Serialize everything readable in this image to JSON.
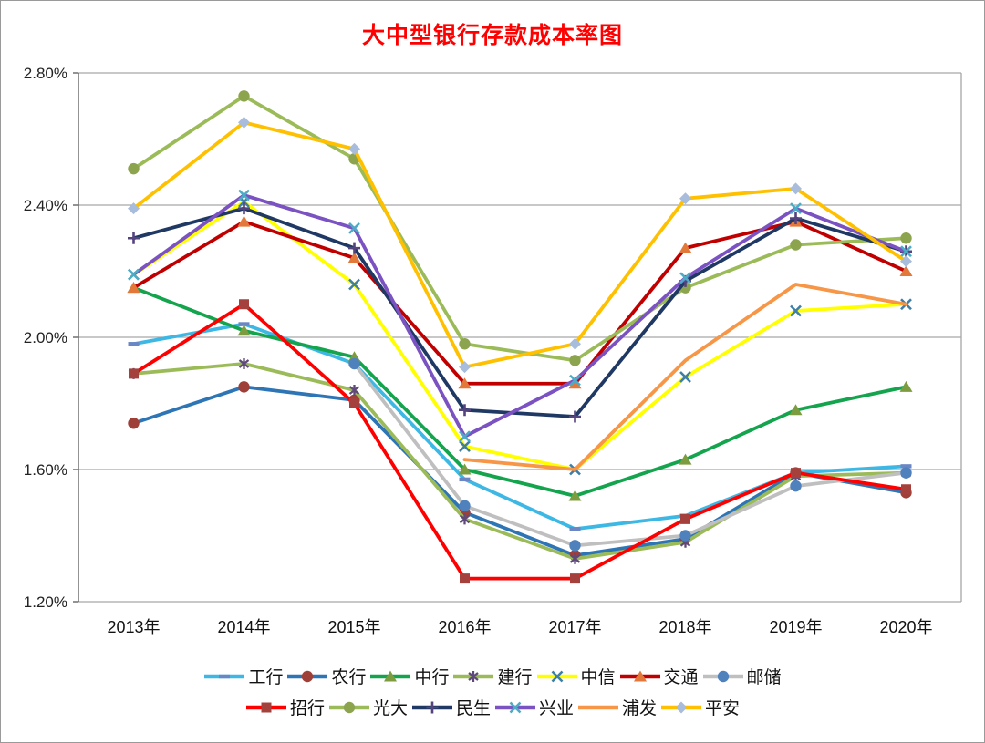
{
  "title": {
    "text": "大中型银行存款成本率图",
    "color": "#FF0000"
  },
  "chart_data": {
    "type": "line",
    "title": "大中型银行存款成本率图",
    "categories": [
      "2013年",
      "2014年",
      "2015年",
      "2016年",
      "2017年",
      "2018年",
      "2019年",
      "2020年"
    ],
    "ylim": [
      1.2,
      2.8
    ],
    "ytick_step": 0.4,
    "ytick_labels": [
      "1.20%",
      "1.60%",
      "2.00%",
      "2.40%",
      "2.80%"
    ],
    "grid": true,
    "legend_position": "bottom",
    "axis_unit": "percent",
    "series": [
      {
        "name": "工行",
        "color": "#3DB7E4",
        "marker": "dash",
        "marker_color": "#6B86C5",
        "values": [
          1.98,
          2.04,
          1.92,
          1.57,
          1.42,
          1.46,
          1.59,
          1.61
        ]
      },
      {
        "name": "农行",
        "color": "#2E75B6",
        "marker": "circle",
        "marker_color": "#9E4038",
        "values": [
          1.74,
          1.85,
          1.81,
          1.47,
          1.34,
          1.39,
          1.59,
          1.53
        ]
      },
      {
        "name": "中行",
        "color": "#14A44D",
        "marker": "triangle",
        "marker_color": "#7D9C3F",
        "values": [
          2.15,
          2.02,
          1.94,
          1.6,
          1.52,
          1.63,
          1.78,
          1.85
        ]
      },
      {
        "name": "建行",
        "color": "#9BBB59",
        "marker": "asterisk",
        "marker_color": "#5F497A",
        "values": [
          1.89,
          1.92,
          1.84,
          1.45,
          1.33,
          1.38,
          1.58,
          1.59
        ]
      },
      {
        "name": "中信",
        "color": "#FFFF00",
        "marker": "x",
        "marker_color": "#3F7FA6",
        "values": [
          2.19,
          2.41,
          2.16,
          1.67,
          1.6,
          1.88,
          2.08,
          2.1
        ]
      },
      {
        "name": "交通",
        "color": "#C00000",
        "marker": "triangle",
        "marker_color": "#E2793B",
        "values": [
          2.15,
          2.35,
          2.24,
          1.86,
          1.86,
          2.27,
          2.35,
          2.2
        ]
      },
      {
        "name": "邮储",
        "color": "#BFBFBF",
        "marker": "circle",
        "marker_color": "#4F81BD",
        "values": [
          null,
          null,
          1.92,
          1.49,
          1.37,
          1.4,
          1.55,
          1.59
        ]
      },
      {
        "name": "招行",
        "color": "#FF0000",
        "marker": "square",
        "marker_color": "#A5413C",
        "values": [
          1.89,
          2.1,
          1.8,
          1.27,
          1.27,
          1.45,
          1.59,
          1.54
        ]
      },
      {
        "name": "光大",
        "color": "#9BBB59",
        "marker": "circle",
        "marker_color": "#8CA44E",
        "values": [
          2.51,
          2.73,
          2.54,
          1.98,
          1.93,
          2.15,
          2.28,
          2.3
        ]
      },
      {
        "name": "民生",
        "color": "#1F3864",
        "marker": "plus",
        "marker_color": "#55437E",
        "values": [
          2.3,
          2.39,
          2.27,
          1.78,
          1.76,
          2.17,
          2.36,
          2.26
        ]
      },
      {
        "name": "兴业",
        "color": "#7B52C1",
        "marker": "x",
        "marker_color": "#4BACC6",
        "values": [
          2.19,
          2.43,
          2.33,
          1.7,
          1.87,
          2.18,
          2.39,
          2.26
        ]
      },
      {
        "name": "浦发",
        "color": "#F79646",
        "marker": "none",
        "marker_color": "#F79646",
        "values": [
          null,
          null,
          null,
          1.63,
          1.6,
          1.93,
          2.16,
          2.1
        ]
      },
      {
        "name": "平安",
        "color": "#FFC000",
        "marker": "diamond",
        "marker_color": "#A8BCDB",
        "values": [
          2.39,
          2.65,
          2.57,
          1.91,
          1.98,
          2.42,
          2.45,
          2.23
        ]
      }
    ],
    "legend_row_split": 7
  }
}
